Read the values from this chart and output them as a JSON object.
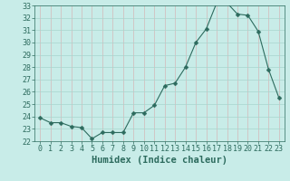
{
  "x": [
    0,
    1,
    2,
    3,
    4,
    5,
    6,
    7,
    8,
    9,
    10,
    11,
    12,
    13,
    14,
    15,
    16,
    17,
    18,
    19,
    20,
    21,
    22,
    23
  ],
  "y": [
    23.9,
    23.5,
    23.5,
    23.2,
    23.1,
    22.2,
    22.7,
    22.7,
    22.7,
    24.3,
    24.3,
    24.9,
    26.5,
    26.7,
    28.0,
    30.0,
    31.1,
    33.2,
    33.2,
    32.3,
    32.2,
    30.9,
    27.8,
    25.5
  ],
  "line_color": "#2d6b5e",
  "marker": "D",
  "marker_size": 2.5,
  "bg_color": "#c8ece8",
  "xlabel": "Humidex (Indice chaleur)",
  "ylim": [
    22,
    33
  ],
  "xlim": [
    -0.5,
    23.5
  ],
  "yticks": [
    22,
    23,
    24,
    25,
    26,
    27,
    28,
    29,
    30,
    31,
    32,
    33
  ],
  "xticks": [
    0,
    1,
    2,
    3,
    4,
    5,
    6,
    7,
    8,
    9,
    10,
    11,
    12,
    13,
    14,
    15,
    16,
    17,
    18,
    19,
    20,
    21,
    22,
    23
  ],
  "tick_color": "#2d6b5e",
  "label_color": "#2d6b5e",
  "tick_fontsize": 6,
  "xlabel_fontsize": 7.5,
  "grid_x_color": "#d4b8b8",
  "grid_y_color": "#a8d4ce",
  "line_width": 0.8
}
